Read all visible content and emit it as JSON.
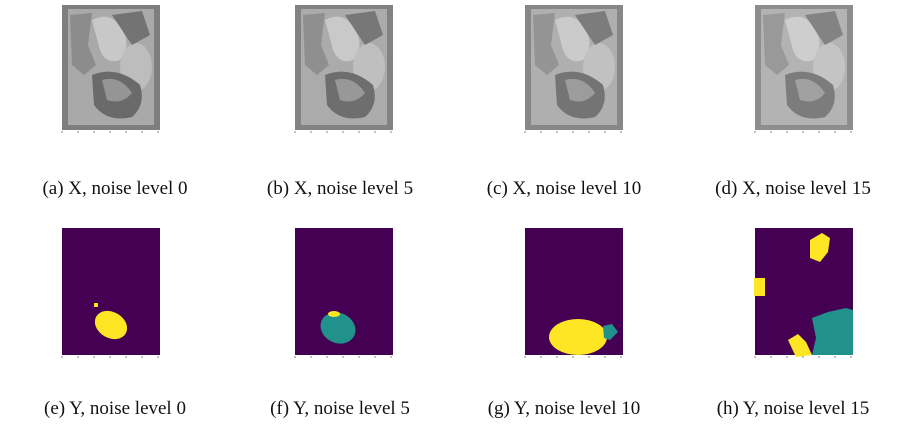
{
  "figure": {
    "subfigures": [
      {
        "caption": "(a) X, noise level 0"
      },
      {
        "caption": "(b) X, noise level 5"
      },
      {
        "caption": "(c) X, noise level 10"
      },
      {
        "caption": "(d) X, noise level 15"
      },
      {
        "caption": "(e) Y, noise level 0"
      },
      {
        "caption": "(f) Y, noise level 5"
      },
      {
        "caption": "(g) Y, noise level 10"
      },
      {
        "caption": "(h) Y, noise level 15"
      }
    ]
  }
}
